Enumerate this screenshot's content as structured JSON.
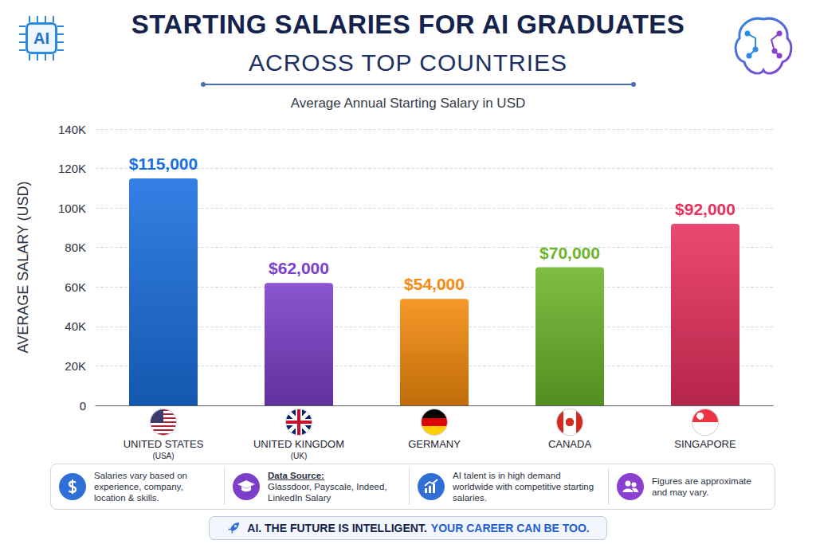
{
  "chart_data": {
    "type": "bar",
    "title": "STARTING SALARIES FOR AI GRADUATES",
    "subtitle": "ACROSS TOP COUNTRIES",
    "caption": "Average Annual Starting Salary in USD",
    "y_label": "AVERAGE SALARY (USD)",
    "badge": "AI",
    "categories": [
      "UNITED STATES",
      "UNITED KINGDOM",
      "GERMANY",
      "CANADA",
      "SINGAPORE"
    ],
    "category_abbreviations": [
      "(USA)",
      "(UK)",
      null,
      null,
      null
    ],
    "values": [
      115000,
      62000,
      54000,
      70000,
      92000
    ],
    "value_labels": [
      "$115,000",
      "$62,000",
      "$54,000",
      "$70,000",
      "$92,000"
    ],
    "colors": [
      "#1a6fe0",
      "#7b3fc9",
      "#f58a0c",
      "#6cb52a",
      "#e8305e"
    ],
    "ylim": [
      0,
      140000
    ],
    "yticks": [
      0,
      {
        "value": 20000,
        "label": "20K"
      },
      {
        "value": 40000,
        "label": "40K"
      },
      {
        "value": 60000,
        "label": "60K"
      },
      {
        "value": 80000,
        "label": "80K"
      },
      {
        "value": 100000,
        "label": "100K"
      },
      {
        "value": 120000,
        "label": "120K"
      },
      {
        "value": 140000,
        "label": "140K"
      }
    ],
    "grid": true,
    "data_labels": true,
    "notes": [
      {
        "text": "Salaries vary based on experience, company, location & skills."
      },
      {
        "heading": "Data Source:",
        "text": "Glassdoor, Payscale, Indeed, LinkedIn Salary"
      },
      {
        "text": "AI talent is in high demand worldwide with competitive starting salaries."
      },
      {
        "text": "Figures are approximate and may vary."
      }
    ],
    "footer": [
      "AI. THE FUTURE IS INTELLIGENT.",
      "YOUR CAREER CAN BE TOO."
    ]
  }
}
